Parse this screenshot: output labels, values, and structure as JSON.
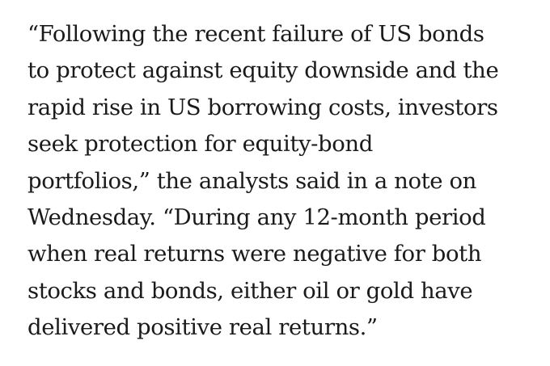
{
  "article": {
    "lines": [
      "“Following the recent failure of US bonds",
      "to protect against equity downside and the",
      "rapid rise in US borrowing costs, investors",
      "seek protection for equity-bond",
      "portfolios,” the analysts said in a note on",
      "Wednesday. “During any 12-month period",
      "when real returns were negative for both",
      "stocks and bonds, either oil or gold have",
      "delivered positive real returns.”"
    ]
  }
}
